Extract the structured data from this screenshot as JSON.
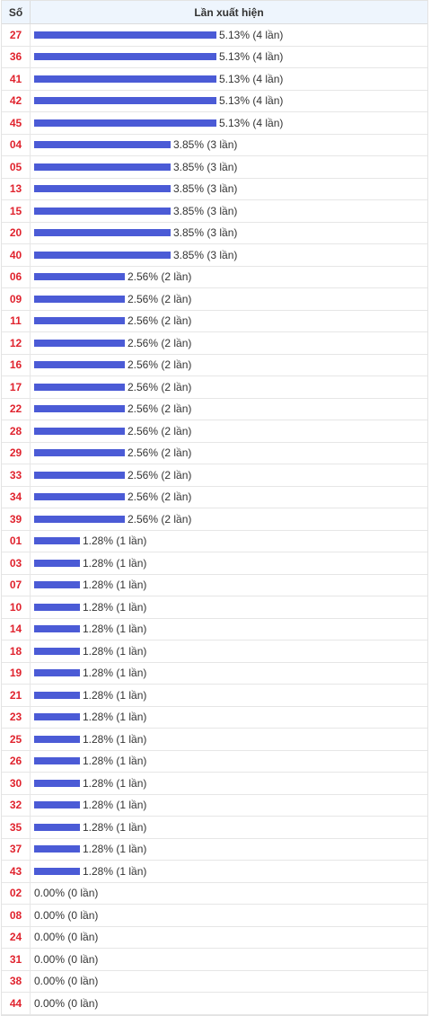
{
  "header": {
    "col_number": "Số",
    "col_freq": "Lần xuất hiện"
  },
  "colors": {
    "bar": "#4b5bd6",
    "number": "#e0232e"
  },
  "rows": [
    {
      "num": "27",
      "pct": 5.13,
      "label": "5.13% (4 lần)"
    },
    {
      "num": "36",
      "pct": 5.13,
      "label": "5.13% (4 lần)"
    },
    {
      "num": "41",
      "pct": 5.13,
      "label": "5.13% (4 lần)"
    },
    {
      "num": "42",
      "pct": 5.13,
      "label": "5.13% (4 lần)"
    },
    {
      "num": "45",
      "pct": 5.13,
      "label": "5.13% (4 lần)"
    },
    {
      "num": "04",
      "pct": 3.85,
      "label": "3.85% (3 lần)"
    },
    {
      "num": "05",
      "pct": 3.85,
      "label": "3.85% (3 lần)"
    },
    {
      "num": "13",
      "pct": 3.85,
      "label": "3.85% (3 lần)"
    },
    {
      "num": "15",
      "pct": 3.85,
      "label": "3.85% (3 lần)"
    },
    {
      "num": "20",
      "pct": 3.85,
      "label": "3.85% (3 lần)"
    },
    {
      "num": "40",
      "pct": 3.85,
      "label": "3.85% (3 lần)"
    },
    {
      "num": "06",
      "pct": 2.56,
      "label": "2.56% (2 lần)"
    },
    {
      "num": "09",
      "pct": 2.56,
      "label": "2.56% (2 lần)"
    },
    {
      "num": "11",
      "pct": 2.56,
      "label": "2.56% (2 lần)"
    },
    {
      "num": "12",
      "pct": 2.56,
      "label": "2.56% (2 lần)"
    },
    {
      "num": "16",
      "pct": 2.56,
      "label": "2.56% (2 lần)"
    },
    {
      "num": "17",
      "pct": 2.56,
      "label": "2.56% (2 lần)"
    },
    {
      "num": "22",
      "pct": 2.56,
      "label": "2.56% (2 lần)"
    },
    {
      "num": "28",
      "pct": 2.56,
      "label": "2.56% (2 lần)"
    },
    {
      "num": "29",
      "pct": 2.56,
      "label": "2.56% (2 lần)"
    },
    {
      "num": "33",
      "pct": 2.56,
      "label": "2.56% (2 lần)"
    },
    {
      "num": "34",
      "pct": 2.56,
      "label": "2.56% (2 lần)"
    },
    {
      "num": "39",
      "pct": 2.56,
      "label": "2.56% (2 lần)"
    },
    {
      "num": "01",
      "pct": 1.28,
      "label": "1.28% (1 lần)"
    },
    {
      "num": "03",
      "pct": 1.28,
      "label": "1.28% (1 lần)"
    },
    {
      "num": "07",
      "pct": 1.28,
      "label": "1.28% (1 lần)"
    },
    {
      "num": "10",
      "pct": 1.28,
      "label": "1.28% (1 lần)"
    },
    {
      "num": "14",
      "pct": 1.28,
      "label": "1.28% (1 lần)"
    },
    {
      "num": "18",
      "pct": 1.28,
      "label": "1.28% (1 lần)"
    },
    {
      "num": "19",
      "pct": 1.28,
      "label": "1.28% (1 lần)"
    },
    {
      "num": "21",
      "pct": 1.28,
      "label": "1.28% (1 lần)"
    },
    {
      "num": "23",
      "pct": 1.28,
      "label": "1.28% (1 lần)"
    },
    {
      "num": "25",
      "pct": 1.28,
      "label": "1.28% (1 lần)"
    },
    {
      "num": "26",
      "pct": 1.28,
      "label": "1.28% (1 lần)"
    },
    {
      "num": "30",
      "pct": 1.28,
      "label": "1.28% (1 lần)"
    },
    {
      "num": "32",
      "pct": 1.28,
      "label": "1.28% (1 lần)"
    },
    {
      "num": "35",
      "pct": 1.28,
      "label": "1.28% (1 lần)"
    },
    {
      "num": "37",
      "pct": 1.28,
      "label": "1.28% (1 lần)"
    },
    {
      "num": "43",
      "pct": 1.28,
      "label": "1.28% (1 lần)"
    },
    {
      "num": "02",
      "pct": 0,
      "label": "0.00% (0 lần)"
    },
    {
      "num": "08",
      "pct": 0,
      "label": "0.00% (0 lần)"
    },
    {
      "num": "24",
      "pct": 0,
      "label": "0.00% (0 lần)"
    },
    {
      "num": "31",
      "pct": 0,
      "label": "0.00% (0 lần)"
    },
    {
      "num": "38",
      "pct": 0,
      "label": "0.00% (0 lần)"
    },
    {
      "num": "44",
      "pct": 0,
      "label": "0.00% (0 lần)"
    }
  ]
}
